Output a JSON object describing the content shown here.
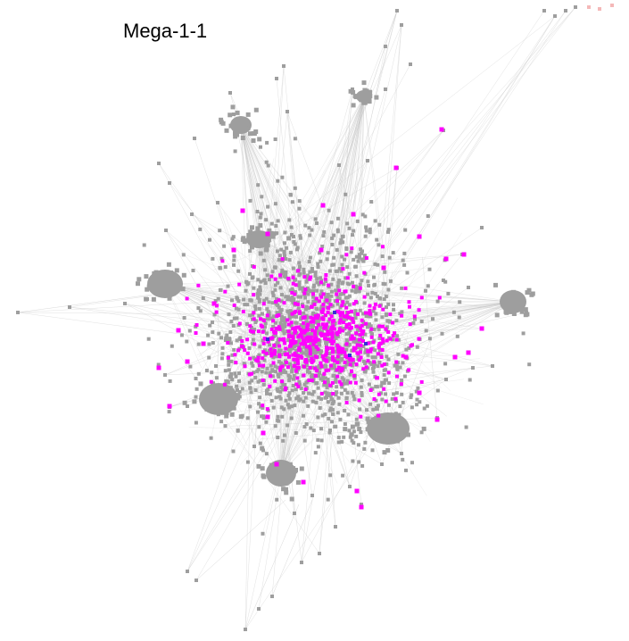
{
  "title": "Mega-1-1",
  "colors": {
    "background": "#ffffff",
    "node_default": "#9e9e9e",
    "edge": "#c8c8c8",
    "node_highlight": "#ff00ff",
    "node_accent": "#3a2bd6",
    "node_faint": "#f4b8b8"
  }
}
